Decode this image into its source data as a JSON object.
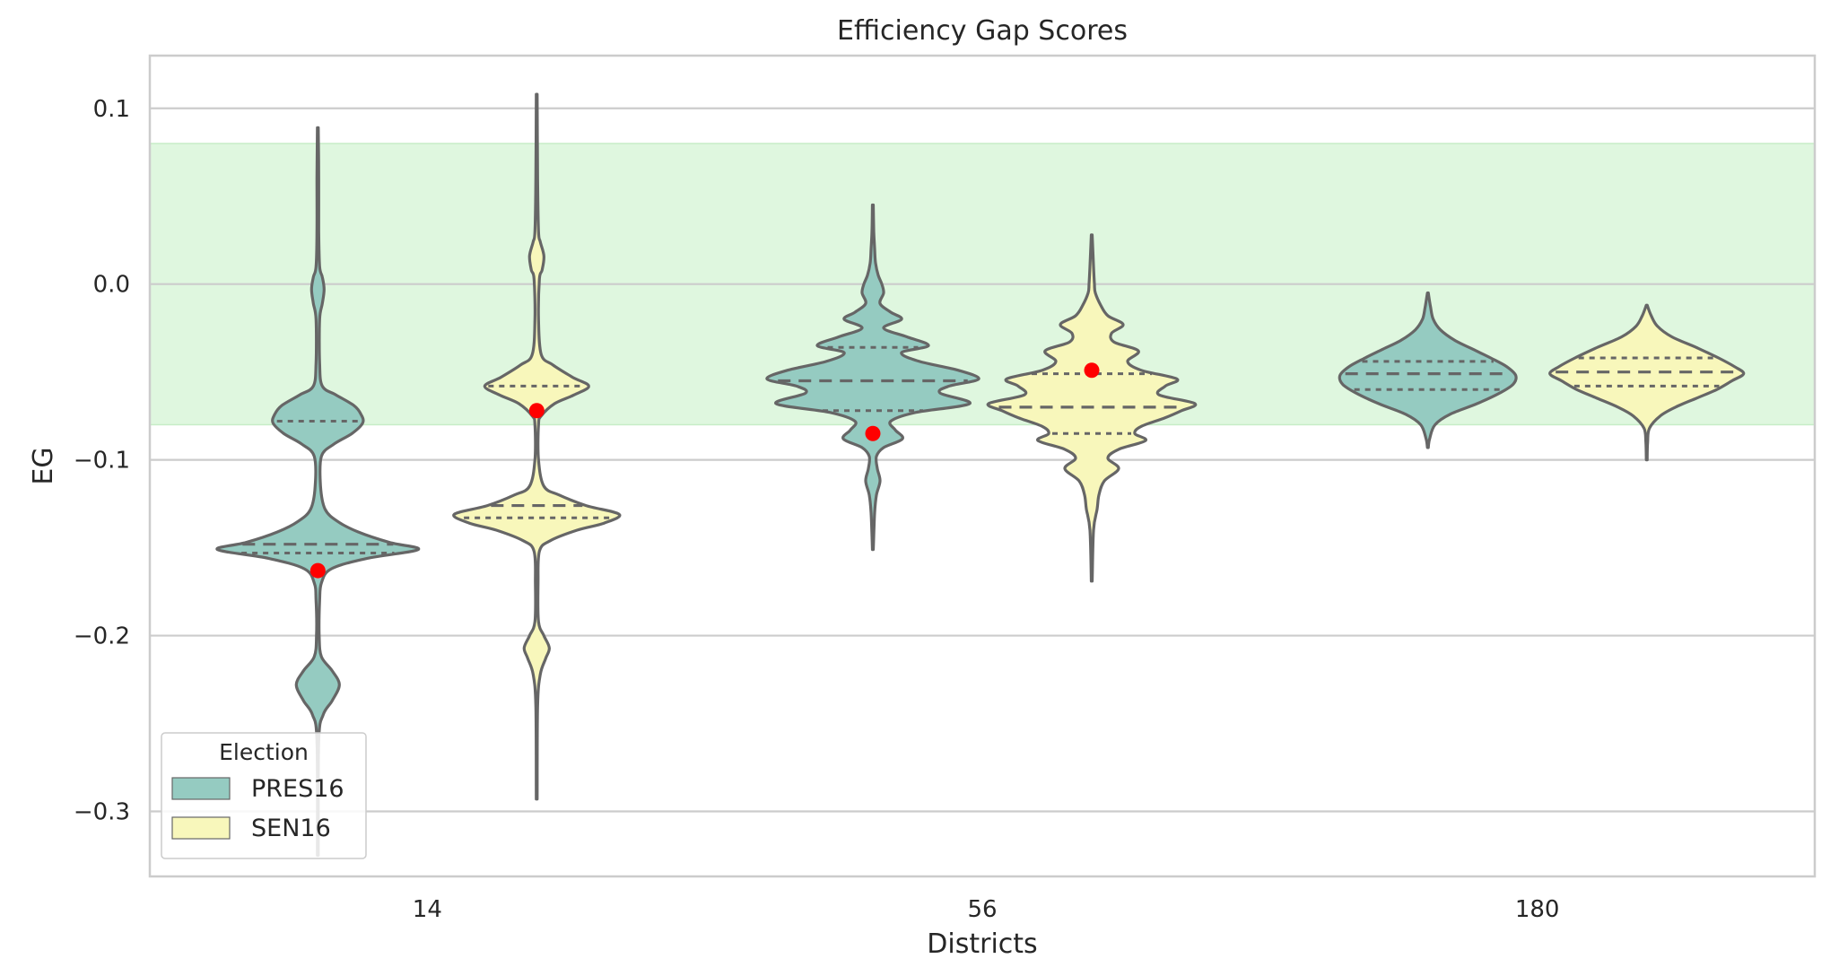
{
  "chart_data": {
    "type": "violin",
    "title": "Efficiency Gap Scores",
    "xlabel": "Districts",
    "ylabel": "EG",
    "categories": [
      "14",
      "56",
      "180"
    ],
    "ylim": [
      -0.337,
      0.13
    ],
    "yticks": [
      0.1,
      0.0,
      -0.1,
      -0.2,
      -0.3
    ],
    "ytick_labels": [
      "0.1",
      "0.0",
      "−0.1",
      "−0.2",
      "−0.3"
    ],
    "grid": true,
    "shaded_band": {
      "from": -0.08,
      "to": 0.08,
      "color": "#dff7df"
    },
    "legend": {
      "title": "Election",
      "placement": "lower-left",
      "entries": [
        {
          "label": "PRES16",
          "color": "#95cbc1"
        },
        {
          "label": "SEN16",
          "color": "#f8f7bb"
        }
      ]
    },
    "colors": {
      "PRES16": "#95cbc1",
      "SEN16": "#f8f7bb",
      "outline": "#666666",
      "marker": "#ff0000",
      "grid": "#cccccc"
    },
    "series": [
      {
        "name": "PRES16",
        "violins": [
          {
            "category": "14",
            "ymin": -0.325,
            "ymax": 0.089,
            "profile": [
              [
                -0.325,
                0.5
              ],
              [
                -0.26,
                1
              ],
              [
                -0.245,
                6
              ],
              [
                -0.237,
                16
              ],
              [
                -0.228,
                24
              ],
              [
                -0.22,
                16
              ],
              [
                -0.212,
                4
              ],
              [
                -0.2,
                1.5
              ],
              [
                -0.18,
                2
              ],
              [
                -0.17,
                4
              ],
              [
                -0.162,
                15
              ],
              [
                -0.156,
                55
              ],
              [
                -0.151,
                112
              ],
              [
                -0.147,
                80
              ],
              [
                -0.141,
                45
              ],
              [
                -0.135,
                22
              ],
              [
                -0.128,
                8
              ],
              [
                -0.115,
                3
              ],
              [
                -0.098,
                4
              ],
              [
                -0.091,
                18
              ],
              [
                -0.085,
                38
              ],
              [
                -0.079,
                50
              ],
              [
                -0.074,
                48
              ],
              [
                -0.069,
                40
              ],
              [
                -0.063,
                20
              ],
              [
                -0.058,
                5
              ],
              [
                -0.045,
                2
              ],
              [
                -0.02,
                2
              ],
              [
                -0.011,
                5
              ],
              [
                -0.003,
                7
              ],
              [
                0.004,
                5
              ],
              [
                0.01,
                2
              ],
              [
                0.03,
                1
              ],
              [
                0.06,
                1
              ],
              [
                0.089,
                0.5
              ]
            ],
            "median": -0.148,
            "q1": -0.153,
            "q3": -0.078,
            "observed": -0.163
          },
          {
            "category": "56",
            "ymin": -0.151,
            "ymax": 0.045,
            "profile": [
              [
                -0.151,
                0.5
              ],
              [
                -0.13,
                2
              ],
              [
                -0.12,
                4
              ],
              [
                -0.112,
                8
              ],
              [
                -0.105,
                5
              ],
              [
                -0.098,
                4
              ],
              [
                -0.093,
                12
              ],
              [
                -0.088,
                33
              ],
              [
                -0.083,
                25
              ],
              [
                -0.078,
                20
              ],
              [
                -0.073,
                48
              ],
              [
                -0.068,
                108
              ],
              [
                -0.062,
                75
              ],
              [
                -0.058,
                85
              ],
              [
                -0.054,
                118
              ],
              [
                -0.049,
                95
              ],
              [
                -0.044,
                52
              ],
              [
                -0.039,
                32
              ],
              [
                -0.035,
                62
              ],
              [
                -0.03,
                38
              ],
              [
                -0.025,
                12
              ],
              [
                -0.02,
                32
              ],
              [
                -0.016,
                20
              ],
              [
                -0.011,
                8
              ],
              [
                -0.005,
                12
              ],
              [
                0,
                10
              ],
              [
                0.005,
                6
              ],
              [
                0.012,
                3
              ],
              [
                0.02,
                2
              ],
              [
                0.03,
                1
              ],
              [
                0.045,
                0.5
              ]
            ],
            "median": -0.055,
            "q1": -0.072,
            "q3": -0.036,
            "observed": -0.085
          },
          {
            "category": "180",
            "ymin": -0.093,
            "ymax": -0.005,
            "profile": [
              [
                -0.093,
                0.5
              ],
              [
                -0.088,
                2
              ],
              [
                -0.08,
                8
              ],
              [
                -0.074,
                25
              ],
              [
                -0.068,
                55
              ],
              [
                -0.062,
                80
              ],
              [
                -0.057,
                95
              ],
              [
                -0.052,
                98
              ],
              [
                -0.047,
                88
              ],
              [
                -0.042,
                70
              ],
              [
                -0.037,
                50
              ],
              [
                -0.032,
                30
              ],
              [
                -0.026,
                14
              ],
              [
                -0.02,
                6
              ],
              [
                -0.013,
                3
              ],
              [
                -0.005,
                0.5
              ]
            ],
            "median": -0.051,
            "q1": -0.06,
            "q3": -0.044,
            "observed": null
          }
        ]
      },
      {
        "name": "SEN16",
        "violins": [
          {
            "category": "14",
            "ymin": -0.293,
            "ymax": 0.108,
            "profile": [
              [
                -0.293,
                0.5
              ],
              [
                -0.24,
                1
              ],
              [
                -0.222,
                4
              ],
              [
                -0.213,
                10
              ],
              [
                -0.207,
                14
              ],
              [
                -0.2,
                8
              ],
              [
                -0.192,
                2
              ],
              [
                -0.17,
                1.5
              ],
              [
                -0.152,
                3
              ],
              [
                -0.146,
                15
              ],
              [
                -0.14,
                45
              ],
              [
                -0.136,
                75
              ],
              [
                -0.131,
                92
              ],
              [
                -0.126,
                55
              ],
              [
                -0.12,
                25
              ],
              [
                -0.115,
                8
              ],
              [
                -0.1,
                2
              ],
              [
                -0.08,
                2
              ],
              [
                -0.075,
                5
              ],
              [
                -0.068,
                20
              ],
              [
                -0.063,
                42
              ],
              [
                -0.058,
                58
              ],
              [
                -0.053,
                40
              ],
              [
                -0.046,
                18
              ],
              [
                -0.04,
                5
              ],
              [
                -0.02,
                2
              ],
              [
                0.003,
                3
              ],
              [
                0.008,
                6
              ],
              [
                0.016,
                8
              ],
              [
                0.024,
                4
              ],
              [
                0.03,
                2
              ],
              [
                0.06,
                1
              ],
              [
                0.108,
                0.5
              ]
            ],
            "median": -0.126,
            "q1": -0.133,
            "q3": -0.058,
            "observed": -0.072
          },
          {
            "category": "56",
            "ymin": -0.169,
            "ymax": 0.028,
            "profile": [
              [
                -0.169,
                0.5
              ],
              [
                -0.14,
                2
              ],
              [
                -0.128,
                6
              ],
              [
                -0.12,
                8
              ],
              [
                -0.112,
                14
              ],
              [
                -0.105,
                30
              ],
              [
                -0.099,
                18
              ],
              [
                -0.094,
                30
              ],
              [
                -0.089,
                60
              ],
              [
                -0.085,
                48
              ],
              [
                -0.081,
                55
              ],
              [
                -0.076,
                82
              ],
              [
                -0.072,
                100
              ],
              [
                -0.068,
                115
              ],
              [
                -0.063,
                75
              ],
              [
                -0.058,
                82
              ],
              [
                -0.054,
                95
              ],
              [
                -0.049,
                55
              ],
              [
                -0.044,
                40
              ],
              [
                -0.038,
                52
              ],
              [
                -0.033,
                25
              ],
              [
                -0.028,
                22
              ],
              [
                -0.023,
                35
              ],
              [
                -0.018,
                18
              ],
              [
                -0.012,
                10
              ],
              [
                -0.005,
                4
              ],
              [
                0,
                3
              ],
              [
                0.01,
                2
              ],
              [
                0.028,
                0.5
              ]
            ],
            "median": -0.07,
            "q1": -0.085,
            "q3": -0.051,
            "observed": -0.049
          },
          {
            "category": "180",
            "ymin": -0.1,
            "ymax": -0.012,
            "profile": [
              [
                -0.1,
                0.5
              ],
              [
                -0.09,
                1
              ],
              [
                -0.082,
                3
              ],
              [
                -0.075,
                15
              ],
              [
                -0.07,
                32
              ],
              [
                -0.065,
                55
              ],
              [
                -0.06,
                78
              ],
              [
                -0.055,
                95
              ],
              [
                -0.051,
                108
              ],
              [
                -0.047,
                98
              ],
              [
                -0.042,
                80
              ],
              [
                -0.036,
                55
              ],
              [
                -0.03,
                28
              ],
              [
                -0.024,
                12
              ],
              [
                -0.018,
                5
              ],
              [
                -0.012,
                0.5
              ]
            ],
            "median": -0.05,
            "q1": -0.058,
            "q3": -0.042,
            "observed": null
          }
        ]
      }
    ]
  }
}
